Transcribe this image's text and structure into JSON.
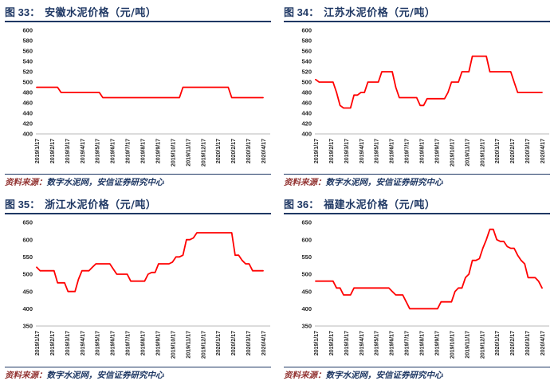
{
  "source": {
    "prefix": "资料来源：",
    "text": "数字水泥网，安信证券研究中心"
  },
  "colors": {
    "line": "#FF0000",
    "heading": "#1F3864",
    "divider": "#1F3864",
    "source_prefix": "#943634",
    "source_text": "#1F3864",
    "axis_text": "#262626",
    "baseline": "#C6C6C6"
  },
  "chart_data": [
    {
      "type": "line",
      "fig_label": "图 33：",
      "title": "安徽水泥价格（元/吨）",
      "ylabel": "元/吨",
      "y_min": 400,
      "y_max": 600,
      "y_step": 20,
      "grid": false,
      "legend": "none",
      "line_color": "#FF0000",
      "x_resolution": "weekly",
      "x_ticks": [
        "2019/1/17",
        "2019/2/17",
        "2019/3/17",
        "2019/4/17",
        "2019/5/17",
        "2019/6/17",
        "2019/7/17",
        "2019/8/17",
        "2019/9/17",
        "2019/10/17",
        "2019/11/17",
        "2019/12/17",
        "2020/1/17",
        "2020/2/17",
        "2020/3/17",
        "2020/4/17"
      ],
      "values": [
        490,
        490,
        490,
        490,
        490,
        490,
        490,
        480,
        480,
        480,
        480,
        480,
        480,
        480,
        480,
        480,
        480,
        480,
        480,
        470,
        470,
        470,
        470,
        470,
        470,
        470,
        470,
        470,
        470,
        470,
        470,
        470,
        470,
        470,
        470,
        470,
        470,
        470,
        470,
        470,
        470,
        470,
        490,
        490,
        490,
        490,
        490,
        490,
        490,
        490,
        490,
        490,
        490,
        490,
        490,
        490,
        470,
        470,
        470,
        470,
        470,
        470,
        470,
        470,
        470,
        470
      ]
    },
    {
      "type": "line",
      "fig_label": "图 34：",
      "title": "江苏水泥价格（元/吨）",
      "ylabel": "元/吨",
      "y_min": 400,
      "y_max": 600,
      "y_step": 20,
      "grid": false,
      "legend": "none",
      "line_color": "#FF0000",
      "x_resolution": "weekly",
      "x_ticks": [
        "2019/1/17",
        "2019/2/17",
        "2019/3/17",
        "2019/4/17",
        "2019/5/17",
        "2019/6/17",
        "2019/7/17",
        "2019/8/17",
        "2019/9/17",
        "2019/10/17",
        "2019/11/17",
        "2019/12/17",
        "2020/1/17",
        "2020/2/17",
        "2020/3/17",
        "2020/4/17"
      ],
      "values": [
        505,
        500,
        500,
        500,
        500,
        500,
        480,
        455,
        450,
        450,
        450,
        475,
        475,
        480,
        480,
        500,
        500,
        500,
        500,
        520,
        520,
        520,
        520,
        490,
        470,
        470,
        470,
        470,
        470,
        470,
        455,
        455,
        468,
        468,
        468,
        468,
        468,
        468,
        480,
        500,
        500,
        500,
        520,
        520,
        520,
        550,
        550,
        550,
        550,
        550,
        520,
        520,
        520,
        520,
        520,
        520,
        520,
        500,
        480,
        480,
        480,
        480,
        480,
        480,
        480,
        480
      ]
    },
    {
      "type": "line",
      "fig_label": "图 35：",
      "title": "浙江水泥价格（元/吨）",
      "ylabel": "元/吨",
      "y_min": 350,
      "y_max": 650,
      "y_step": 50,
      "grid": false,
      "legend": "none",
      "line_color": "#FF0000",
      "x_resolution": "weekly",
      "x_ticks": [
        "2019/1/17",
        "2019/2/17",
        "2019/3/17",
        "2019/4/17",
        "2019/5/17",
        "2019/6/17",
        "2019/7/17",
        "2019/8/17",
        "2019/9/17",
        "2019/10/17",
        "2019/11/17",
        "2019/12/17",
        "2020/1/17",
        "2020/2/17",
        "2020/3/17",
        "2020/4/17"
      ],
      "values": [
        520,
        510,
        510,
        510,
        510,
        510,
        475,
        475,
        475,
        450,
        450,
        450,
        485,
        510,
        510,
        510,
        520,
        530,
        530,
        530,
        530,
        530,
        515,
        500,
        500,
        500,
        500,
        480,
        480,
        480,
        480,
        480,
        500,
        505,
        505,
        530,
        530,
        530,
        530,
        535,
        550,
        550,
        555,
        600,
        600,
        605,
        620,
        620,
        620,
        620,
        620,
        620,
        620,
        620,
        620,
        620,
        620,
        555,
        555,
        540,
        530,
        530,
        510,
        510,
        510,
        510
      ]
    },
    {
      "type": "line",
      "fig_label": "图 36：",
      "title": "福建水泥价格（元/吨）",
      "ylabel": "元/吨",
      "y_min": 350,
      "y_max": 650,
      "y_step": 50,
      "grid": false,
      "legend": "none",
      "line_color": "#FF0000",
      "x_resolution": "weekly",
      "x_ticks": [
        "2019/1/17",
        "2019/2/17",
        "2019/3/17",
        "2019/4/17",
        "2019/5/17",
        "2019/6/17",
        "2019/7/17",
        "2019/8/17",
        "2019/9/17",
        "2019/10/17",
        "2019/11/17",
        "2019/12/17",
        "2020/1/17",
        "2020/2/17",
        "2020/3/17",
        "2020/4/17"
      ],
      "values": [
        480,
        480,
        480,
        480,
        480,
        480,
        460,
        460,
        440,
        440,
        440,
        460,
        460,
        460,
        460,
        460,
        460,
        460,
        460,
        460,
        460,
        460,
        450,
        440,
        440,
        440,
        420,
        400,
        400,
        400,
        400,
        400,
        400,
        400,
        400,
        400,
        420,
        420,
        420,
        420,
        450,
        460,
        460,
        490,
        500,
        540,
        540,
        545,
        575,
        600,
        630,
        630,
        600,
        595,
        595,
        580,
        575,
        575,
        555,
        540,
        530,
        490,
        490,
        490,
        480,
        460
      ]
    }
  ]
}
